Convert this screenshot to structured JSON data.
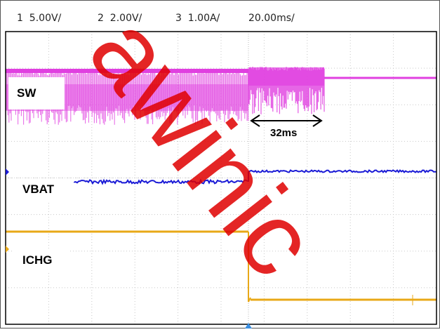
{
  "header": {
    "ch1": "1  5.00V/",
    "ch2": "2  2.00V/",
    "ch3": "3  1.00A/",
    "timebase": "20.00ms/"
  },
  "labels": {
    "sw": "SW",
    "vbat": "VBAT",
    "ichg": "ICHG"
  },
  "measurement": {
    "text": "32ms"
  },
  "watermark": "awinic",
  "colors": {
    "sw": "#e040e0",
    "vbat": "#1a1ad6",
    "ichg": "#e8a817",
    "grid": "#c8c8c8",
    "frame": "#000000",
    "watermark": "#e00000"
  },
  "chart_data": {
    "type": "line",
    "timebase": "20.00ms/",
    "series": [
      {
        "name": "SW",
        "scale": "5.00V/",
        "segments": [
          "switching",
          "switching-dense",
          "flat-high"
        ]
      },
      {
        "name": "VBAT",
        "scale": "2.00V/",
        "step": "low-to-high"
      },
      {
        "name": "ICHG",
        "scale": "1.00A/",
        "step": "high-to-low"
      }
    ],
    "annotations": [
      "32ms"
    ]
  }
}
